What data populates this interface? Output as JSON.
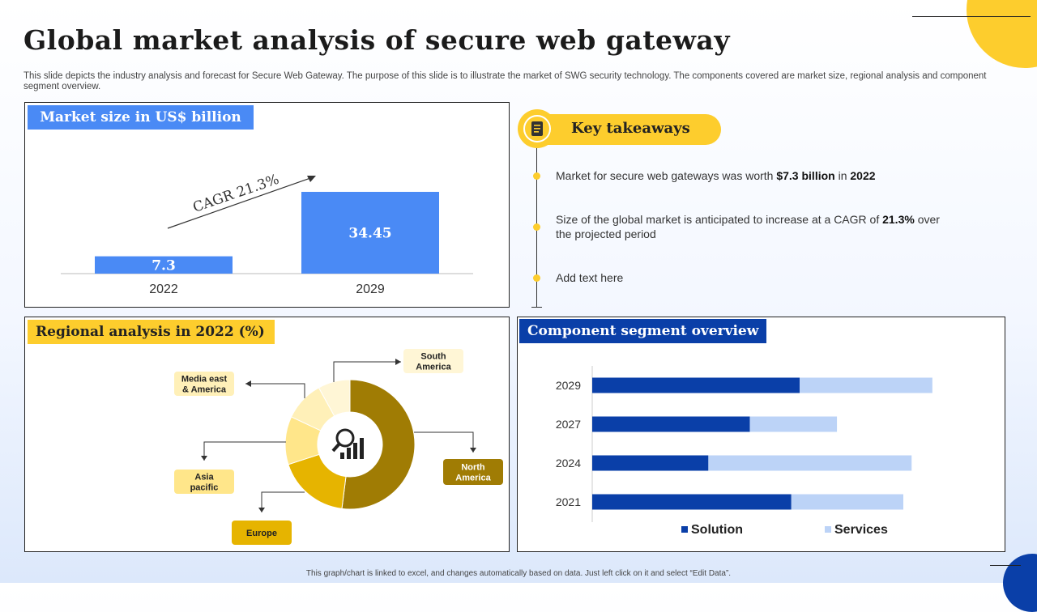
{
  "title": "Global market analysis of secure web gateway",
  "subtitle": "This slide depicts the industry analysis and forecast for Secure Web Gateway. The purpose of this slide is to illustrate the market of SWG security technology. The components covered are market size, regional analysis and component segment overview.",
  "footnote": "This graph/chart is linked to excel, and changes automatically based on data. Just left click on it and select “Edit Data”.",
  "colors": {
    "accent_blue": "#4a8af5",
    "accent_yellow": "#fdcd2d",
    "navy": "#0a3fa8",
    "light_blue": "#bcd3f7"
  },
  "market_panel": {
    "label": "Market size in US$ billion",
    "cagr_label": "CAGR 21.3%"
  },
  "region_panel": {
    "label": "Regional analysis in 2022 (%)",
    "center_icon": "analytics-magnifier-icon"
  },
  "component_panel": {
    "label": "Component segment overview"
  },
  "key_takeaways": {
    "title": "Key takeaways",
    "icon": "document-list-icon",
    "items": [
      {
        "pre": "Market for secure web gateways was worth ",
        "b1": "$7.3 billion",
        "mid": " in ",
        "b2": "2022",
        "post": ""
      },
      {
        "pre": "Size of the global market is anticipated to increase at a CAGR of ",
        "b1": "21.3%",
        "mid": " over the projected period",
        "b2": "",
        "post": ""
      },
      {
        "pre": "Add text here",
        "b1": "",
        "mid": "",
        "b2": "",
        "post": ""
      }
    ]
  },
  "chart_data": [
    {
      "type": "bar",
      "title": "Market size in US$ billion",
      "categories": [
        "2022",
        "2029"
      ],
      "values": [
        7.3,
        34.45
      ],
      "annotation": "CAGR 21.3%",
      "ylim": [
        0,
        40
      ]
    },
    {
      "type": "pie",
      "title": "Regional analysis in 2022 (%)",
      "variant": "donut",
      "categories": [
        "North America",
        "Europe",
        "Asia pacific",
        "Media east & America",
        "South America"
      ],
      "labels_shown": [
        "North\nAmerica",
        "Europe",
        "Asia\npacific",
        "Media east\n& America",
        "South\nAmerica"
      ],
      "values": [
        52,
        18,
        12,
        10,
        8
      ],
      "colors": [
        "#a07c04",
        "#e6b400",
        "#ffe68a",
        "#fff0b8",
        "#fff6d6"
      ]
    },
    {
      "type": "bar",
      "orientation": "horizontal",
      "stacked": true,
      "title": "Component segment overview",
      "categories": [
        "2029",
        "2027",
        "2024",
        "2021"
      ],
      "series": [
        {
          "name": "Solution",
          "values": [
            50,
            38,
            28,
            48
          ],
          "color": "#0a3fa8"
        },
        {
          "name": "Services",
          "values": [
            32,
            21,
            49,
            27
          ],
          "color": "#bcd3f7"
        }
      ],
      "xlim": [
        0,
        90
      ],
      "legend": "bottom"
    }
  ]
}
